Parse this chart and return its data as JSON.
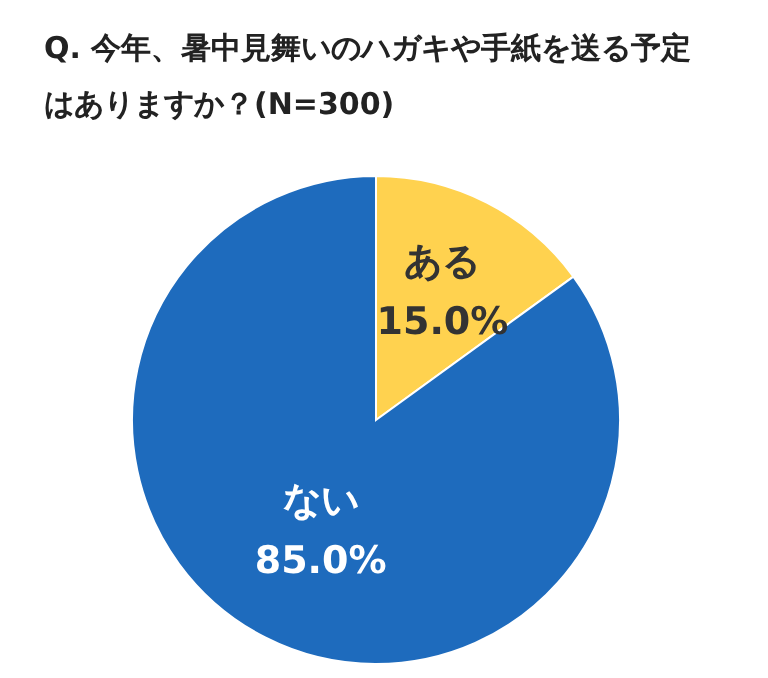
{
  "chart_data": {
    "type": "pie",
    "title": "Q. 今年、暑中見舞いのハガキや手紙を送る予定はありますか？(N=300)",
    "categories": [
      "ある",
      "ない"
    ],
    "values": [
      15.0,
      85.0
    ],
    "colors": [
      "#ffd24f",
      "#1e6bbd"
    ],
    "value_labels": [
      "15.0%",
      "85.0%"
    ],
    "legend": false
  }
}
